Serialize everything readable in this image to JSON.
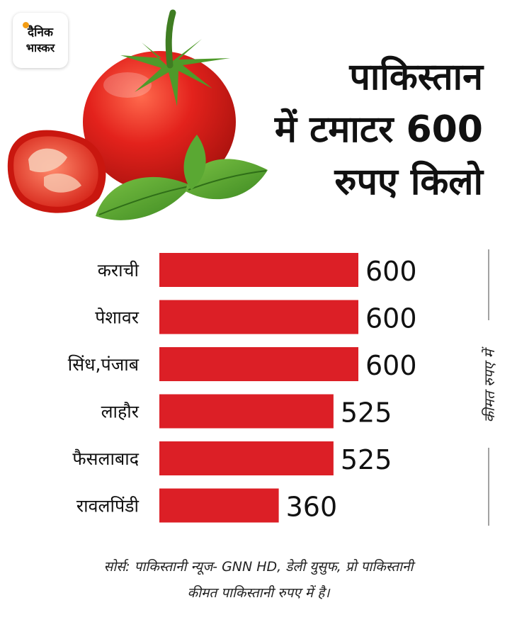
{
  "brand": {
    "logo_line1": "दैनिक",
    "logo_line2": "भास्कर"
  },
  "headline": {
    "line1": "पाकिस्तान",
    "line2": "में टमाटर 600",
    "line3": "रुपए किलो"
  },
  "chart_data": {
    "type": "bar",
    "orientation": "horizontal",
    "categories": [
      "कराची",
      "पेशावर",
      "सिंध,पंजाब",
      "लाहौर",
      "फैसलाबाद",
      "रावलपिंडी"
    ],
    "values": [
      600,
      600,
      600,
      525,
      525,
      360
    ],
    "value_labels": [
      "600",
      "600",
      "600",
      "525",
      "525",
      "360"
    ],
    "ylabel": "कीमत रुपए में",
    "xlim": [
      0,
      600
    ],
    "bar_color": "#dc1f26",
    "grid": false,
    "legend": "none"
  },
  "footer": {
    "source_line": "सोर्स: पाकिस्तानी न्यूज- GNN HD, डेली युसुफ, प्रो पाकिस्तानी",
    "note_line": "कीमत पाकिस्तानी रुपए में है।"
  },
  "illustration": {
    "icon_name": "tomato-with-basil-icon",
    "colors": {
      "tomato": "#e3221c",
      "leaf": "#4e9a2a",
      "stem": "#3f7d22"
    }
  }
}
